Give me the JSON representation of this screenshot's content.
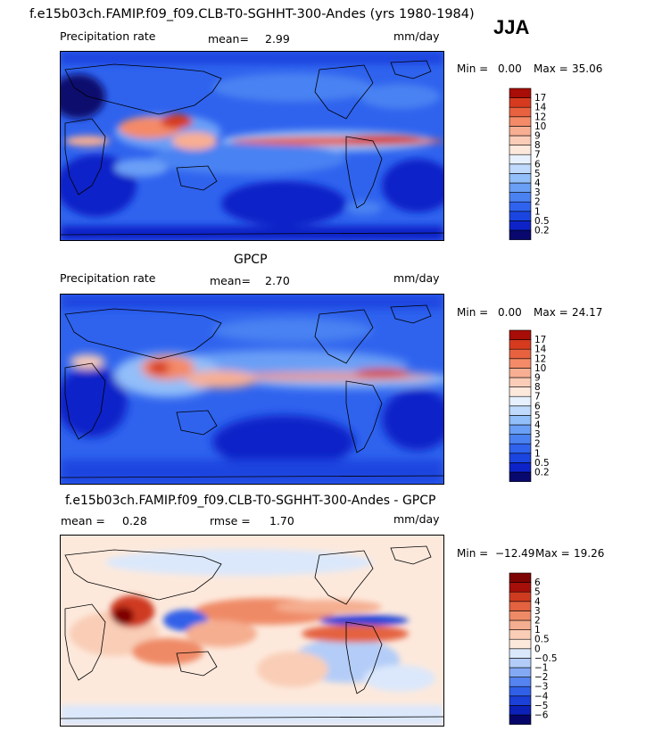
{
  "header": {
    "title": "f.e15b03ch.FAMIP.f09_f09.CLB-T0-SGHHT-300-Andes (yrs 1980-1984)",
    "season": "JJA"
  },
  "panels": [
    {
      "id": "model",
      "title": "",
      "left_label": "Precipitation rate",
      "stat1_label": "mean=",
      "stat1_value": "2.99",
      "stat2_label": "",
      "stat2_value": "",
      "units": "mm/day",
      "min_label": "Min =",
      "min_value": "0.00",
      "max_label": "Max =",
      "max_value": "35.06"
    },
    {
      "id": "obs",
      "title": "GPCP",
      "left_label": "Precipitation rate",
      "stat1_label": "mean=",
      "stat1_value": "2.70",
      "stat2_label": "",
      "stat2_value": "",
      "units": "mm/day",
      "min_label": "Min =",
      "min_value": "0.00",
      "max_label": "Max =",
      "max_value": "24.17"
    },
    {
      "id": "diff",
      "title": "f.e15b03ch.FAMIP.f09_f09.CLB-T0-SGHHT-300-Andes - GPCP",
      "left_label": "",
      "stat1_label": "mean =",
      "stat1_value": "0.28",
      "stat2_label": "rmse =",
      "stat2_value": "1.70",
      "units": "mm/day",
      "min_label": "Min =",
      "min_value": "−12.49",
      "max_label": "Max =",
      "max_value": "19.26"
    }
  ],
  "chart_data": [
    {
      "type": "heatmap",
      "title": "Precipitation rate",
      "units": "mm/day",
      "mean": 2.99,
      "min": 0.0,
      "max": 35.06,
      "colorbar_levels": [
        "0.2",
        "0.5",
        "1",
        "2",
        "3",
        "4",
        "5",
        "6",
        "7",
        "8",
        "9",
        "10",
        "12",
        "14",
        "17"
      ],
      "colorbar_colors": [
        "#08086e",
        "#0d23c8",
        "#1b45e0",
        "#2f63ee",
        "#4a82f2",
        "#6a9ff6",
        "#92bef9",
        "#bfdafc",
        "#e7f1fd",
        "#fde8dc",
        "#fbcdb8",
        "#f8ae92",
        "#f48a68",
        "#e8623f",
        "#d63b1f",
        "#a80d07"
      ]
    },
    {
      "type": "heatmap",
      "title": "GPCP",
      "units": "mm/day",
      "mean": 2.7,
      "min": 0.0,
      "max": 24.17,
      "colorbar_levels": [
        "0.2",
        "0.5",
        "1",
        "2",
        "3",
        "4",
        "5",
        "6",
        "7",
        "8",
        "9",
        "10",
        "12",
        "14",
        "17"
      ],
      "colorbar_colors": [
        "#08086e",
        "#0d23c8",
        "#1b45e0",
        "#2f63ee",
        "#4a82f2",
        "#6a9ff6",
        "#92bef9",
        "#bfdafc",
        "#e7f1fd",
        "#fde8dc",
        "#fbcdb8",
        "#f8ae92",
        "#f48a68",
        "#e8623f",
        "#d63b1f",
        "#a80d07"
      ]
    },
    {
      "type": "heatmap",
      "title": "f.e15b03ch.FAMIP.f09_f09.CLB-T0-SGHHT-300-Andes - GPCP",
      "units": "mm/day",
      "mean": 0.28,
      "rmse": 1.7,
      "min": -12.49,
      "max": 19.26,
      "colorbar_levels": [
        "−6",
        "−5",
        "−4",
        "−3",
        "−2",
        "−1",
        "−0.5",
        "0",
        "0.5",
        "1",
        "2",
        "3",
        "4",
        "5",
        "6"
      ],
      "colorbar_colors": [
        "#06066a",
        "#0b21b8",
        "#1b40d8",
        "#3060e8",
        "#5583f0",
        "#84a9f4",
        "#b4cdf8",
        "#dbe8fb",
        "#fde9dc",
        "#f9cdb6",
        "#f5ae90",
        "#ef8a66",
        "#e4623f",
        "#cf3b20",
        "#a70f0a",
        "#7e0404"
      ]
    }
  ]
}
